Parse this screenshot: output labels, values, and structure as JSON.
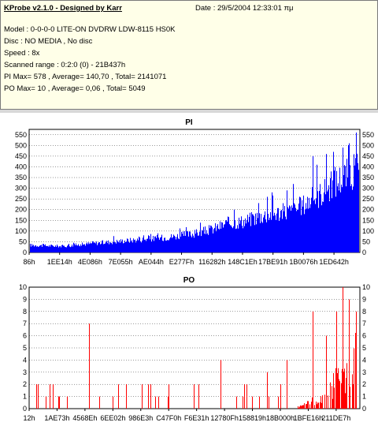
{
  "info": {
    "app_title": "KProbe v2.1.0 - Designed by Karr",
    "date": "Date : 29/5/2004 12:33:01 πμ",
    "model": "Model : 0-0-0-0 LITE-ON DVDRW LDW-8115   HS0K",
    "disc": "Disc : NO MEDIA , No disc",
    "speed": "Speed : 8x",
    "range": "Scanned range : 0:2:0 (0) - 21B437h",
    "pi_stats": "PI Max= 578 , Average= 140,70 , Total= 2141071",
    "po_stats": "PO Max= 10 , Average= 0,06 , Total= 5049"
  },
  "colors": {
    "info_bg": "#ffffe8",
    "pi_bar": "#0000ff",
    "po_bar": "#ff0000",
    "plot_bg": "#ffffff",
    "grid": "#000000"
  },
  "chart_data": [
    {
      "type": "bar",
      "title": "PI",
      "color": "#0000ff",
      "ylim": [
        0,
        575
      ],
      "yticks": [
        0,
        50,
        100,
        150,
        200,
        250,
        300,
        350,
        400,
        450,
        500,
        550
      ],
      "right_axis": true,
      "grid": true,
      "x_tick_labels": [
        "86h",
        "1EE14h",
        "4E086h",
        "7E055h",
        "AE044h",
        "E277Fh",
        "116282h",
        "148C1Eh",
        "17BE91h",
        "1B0076h",
        "1ED642h"
      ],
      "baseline": [
        [
          0,
          35
        ],
        [
          0.1,
          30
        ],
        [
          0.2,
          45
        ],
        [
          0.3,
          58
        ],
        [
          0.4,
          70
        ],
        [
          0.5,
          90
        ],
        [
          0.55,
          110
        ],
        [
          0.6,
          140
        ],
        [
          0.65,
          150
        ],
        [
          0.7,
          175
        ],
        [
          0.75,
          190
        ],
        [
          0.8,
          200
        ],
        [
          0.85,
          250
        ],
        [
          0.9,
          300
        ],
        [
          0.95,
          365
        ],
        [
          1.0,
          400
        ]
      ],
      "peaks": [
        [
          0.62,
          200
        ],
        [
          0.72,
          260
        ],
        [
          0.78,
          290
        ],
        [
          0.8,
          320
        ],
        [
          0.86,
          450
        ],
        [
          0.87,
          410
        ],
        [
          0.9,
          460
        ],
        [
          0.92,
          470
        ],
        [
          0.95,
          490
        ],
        [
          0.97,
          510
        ],
        [
          0.99,
          560
        ]
      ],
      "max": 578
    },
    {
      "type": "bar",
      "title": "PO",
      "color": "#ff0000",
      "ylim": [
        0,
        10
      ],
      "yticks": [
        0,
        1,
        2,
        3,
        4,
        5,
        6,
        7,
        8,
        9,
        10
      ],
      "right_axis": true,
      "grid": true,
      "x_tick_labels": [
        "12h",
        "1AE73h",
        "4568Eh",
        "6EE02h",
        "986E3h",
        "C47F0h",
        "F6E31h",
        "12780Fh",
        "158819h",
        "18B000h",
        "1BFE16h",
        "211DE7h"
      ],
      "baseline": [
        [
          0,
          0
        ],
        [
          0.8,
          0
        ],
        [
          0.85,
          0.5
        ],
        [
          0.88,
          1.2
        ],
        [
          0.92,
          2.5
        ],
        [
          0.95,
          3.5
        ],
        [
          1.0,
          4.5
        ]
      ],
      "peaks": [
        [
          0.02,
          2
        ],
        [
          0.07,
          2
        ],
        [
          0.18,
          7
        ],
        [
          0.36,
          2
        ],
        [
          0.58,
          4
        ],
        [
          0.65,
          2
        ],
        [
          0.72,
          3
        ],
        [
          0.76,
          2
        ],
        [
          0.78,
          4
        ],
        [
          0.86,
          8
        ],
        [
          0.9,
          6
        ],
        [
          0.93,
          8
        ],
        [
          0.95,
          10
        ],
        [
          0.97,
          9
        ],
        [
          0.99,
          8
        ]
      ],
      "max": 10
    }
  ]
}
